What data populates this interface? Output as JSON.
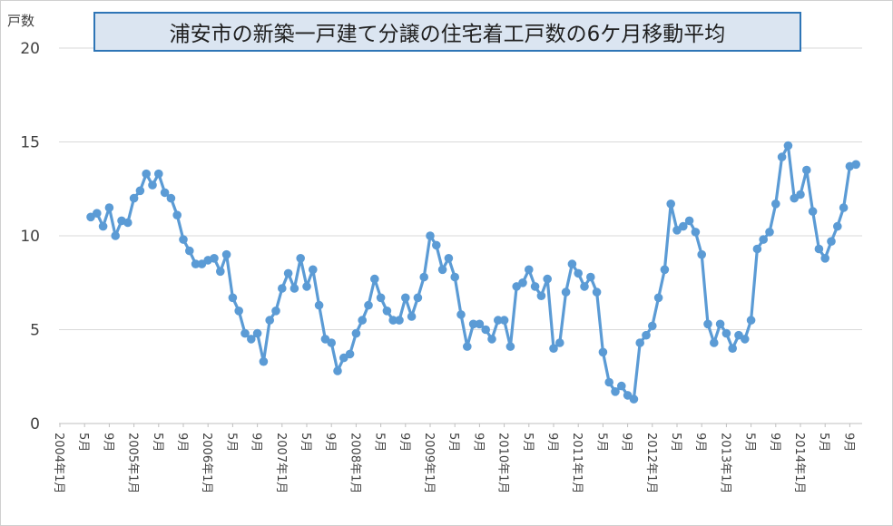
{
  "chart_data": {
    "type": "line",
    "title": "浦安市の新築一戸建て分譲の住宅着工戸数の6ケ月移動平均",
    "ylabel": "戸数",
    "xlabel": "",
    "ylim": [
      0,
      20
    ],
    "yticks": [
      "0",
      "5",
      "10",
      "15",
      "20"
    ],
    "grid": true,
    "legend": "none",
    "x_tick_labels": [
      "2004年1月",
      "5月",
      "9月",
      "2005年1月",
      "5月",
      "9月",
      "2006年1月",
      "5月",
      "9月",
      "2007年1月",
      "5月",
      "9月",
      "2008年1月",
      "5月",
      "9月",
      "2009年1月",
      "5月",
      "9月",
      "2010年1月",
      "5月",
      "9月",
      "2011年1月",
      "5月",
      "9月",
      "2012年1月",
      "5月",
      "9月",
      "2013年1月",
      "5月",
      "9月",
      "2014年1月",
      "5月",
      "9月"
    ],
    "series": [
      {
        "color": "#5b9bd5",
        "x_start": "2004年6月",
        "x_end": "2014年10月",
        "values": [
          11.0,
          11.2,
          10.5,
          11.5,
          10.0,
          10.8,
          10.7,
          12.0,
          12.4,
          13.3,
          12.7,
          13.3,
          12.3,
          12.0,
          11.1,
          9.8,
          9.2,
          8.5,
          8.5,
          8.7,
          8.8,
          8.1,
          9.0,
          6.7,
          6.0,
          4.8,
          4.5,
          4.8,
          3.3,
          5.5,
          6.0,
          7.2,
          8.0,
          7.2,
          8.8,
          7.3,
          8.2,
          6.3,
          4.5,
          4.3,
          2.8,
          3.5,
          3.7,
          4.8,
          5.5,
          6.3,
          7.7,
          6.7,
          6.0,
          5.5,
          5.5,
          6.7,
          5.7,
          6.7,
          7.8,
          10.0,
          9.5,
          8.2,
          8.8,
          7.8,
          5.8,
          4.1,
          5.3,
          5.3,
          5.0,
          4.5,
          5.5,
          5.5,
          4.1,
          7.3,
          7.5,
          8.2,
          7.3,
          6.8,
          7.7,
          4.0,
          4.3,
          7.0,
          8.5,
          8.0,
          7.3,
          7.8,
          7.0,
          3.8,
          2.2,
          1.7,
          2.0,
          1.5,
          1.3,
          4.3,
          4.7,
          5.2,
          6.7,
          8.2,
          11.7,
          10.3,
          10.5,
          10.8,
          10.2,
          9.0,
          5.3,
          4.3,
          5.3,
          4.8,
          4.0,
          4.7,
          4.5,
          5.5,
          9.3,
          9.8,
          10.2,
          11.7,
          14.2,
          14.8,
          12.0,
          12.2,
          13.5,
          11.3,
          9.3,
          8.8,
          9.7,
          10.5,
          11.5,
          13.7,
          13.8
        ]
      }
    ]
  }
}
